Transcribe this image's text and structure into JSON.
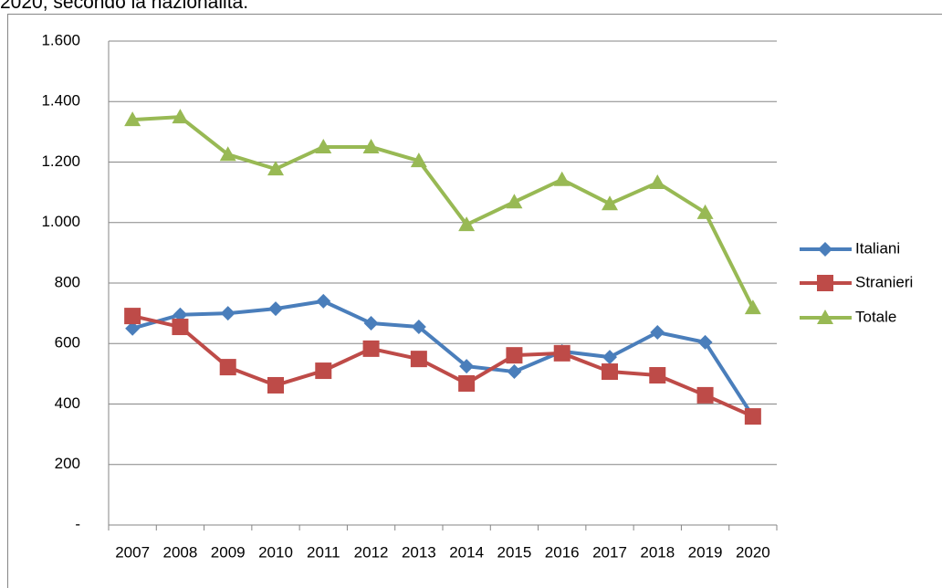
{
  "chart_data": {
    "type": "line",
    "title": "2020, secondo la nazionalità.",
    "categories": [
      "2007",
      "2008",
      "2009",
      "2010",
      "2011",
      "2012",
      "2013",
      "2014",
      "2015",
      "2016",
      "2017",
      "2018",
      "2019",
      "2020"
    ],
    "series": [
      {
        "name": "Italiani",
        "color": "#4a7ebb",
        "marker": "diamond",
        "values": [
          650,
          695,
          700,
          715,
          740,
          667,
          655,
          525,
          507,
          574,
          555,
          637,
          604,
          359
        ]
      },
      {
        "name": "Stranieri",
        "color": "#be4b48",
        "marker": "square",
        "values": [
          691,
          655,
          522,
          462,
          510,
          583,
          549,
          468,
          561,
          568,
          507,
          495,
          429,
          359
        ]
      },
      {
        "name": "Totale",
        "color": "#98b954",
        "marker": "triangle",
        "values": [
          1340,
          1349,
          1225,
          1177,
          1250,
          1250,
          1204,
          993,
          1068,
          1142,
          1062,
          1132,
          1033,
          718
        ]
      }
    ],
    "ylim": [
      0,
      1600
    ],
    "yticks": [
      {
        "value": 0,
        "label": "-"
      },
      200,
      400,
      600,
      800,
      {
        "value": 1000,
        "label": "1.000"
      },
      {
        "value": 1200,
        "label": "1.200"
      },
      {
        "value": 1400,
        "label": "1.400"
      },
      {
        "value": 1600,
        "label": "1.600"
      }
    ],
    "grid": true,
    "legend": "right"
  }
}
